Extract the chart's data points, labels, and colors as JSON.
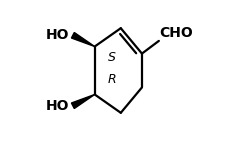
{
  "bg_color": "#ffffff",
  "line_color": "#000000",
  "text_color": "#000000",
  "cho_text": "CHO",
  "cho_fontsize": 10,
  "s_label": "S",
  "s_fontsize": 9,
  "r_label": "R",
  "r_fontsize": 9,
  "ho_fontsize": 10,
  "figsize": [
    2.43,
    1.41
  ],
  "dpi": 100
}
